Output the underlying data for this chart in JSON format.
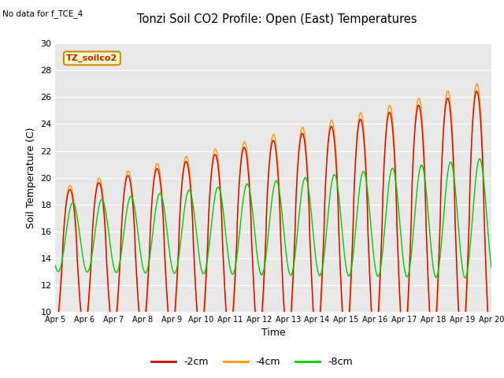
{
  "title": "Tonzi Soil CO2 Profile: Open (East) Temperatures",
  "no_data_text": "No data for f_TCE_4",
  "legend_box_text": "TZ_soilco2",
  "xlabel": "Time",
  "ylabel": "Soil Temperature (C)",
  "ylim": [
    10,
    30
  ],
  "yticks": [
    10,
    12,
    14,
    16,
    18,
    20,
    22,
    24,
    26,
    28,
    30
  ],
  "color_2cm": "#dd0000",
  "color_4cm": "#ff9900",
  "color_8cm": "#00cc00",
  "bg_color": "#e8e8e8",
  "fig_bg_color": "#ffffff",
  "linewidth": 1.0,
  "legend_entries": [
    "-2cm",
    "-4cm",
    "-8cm"
  ]
}
